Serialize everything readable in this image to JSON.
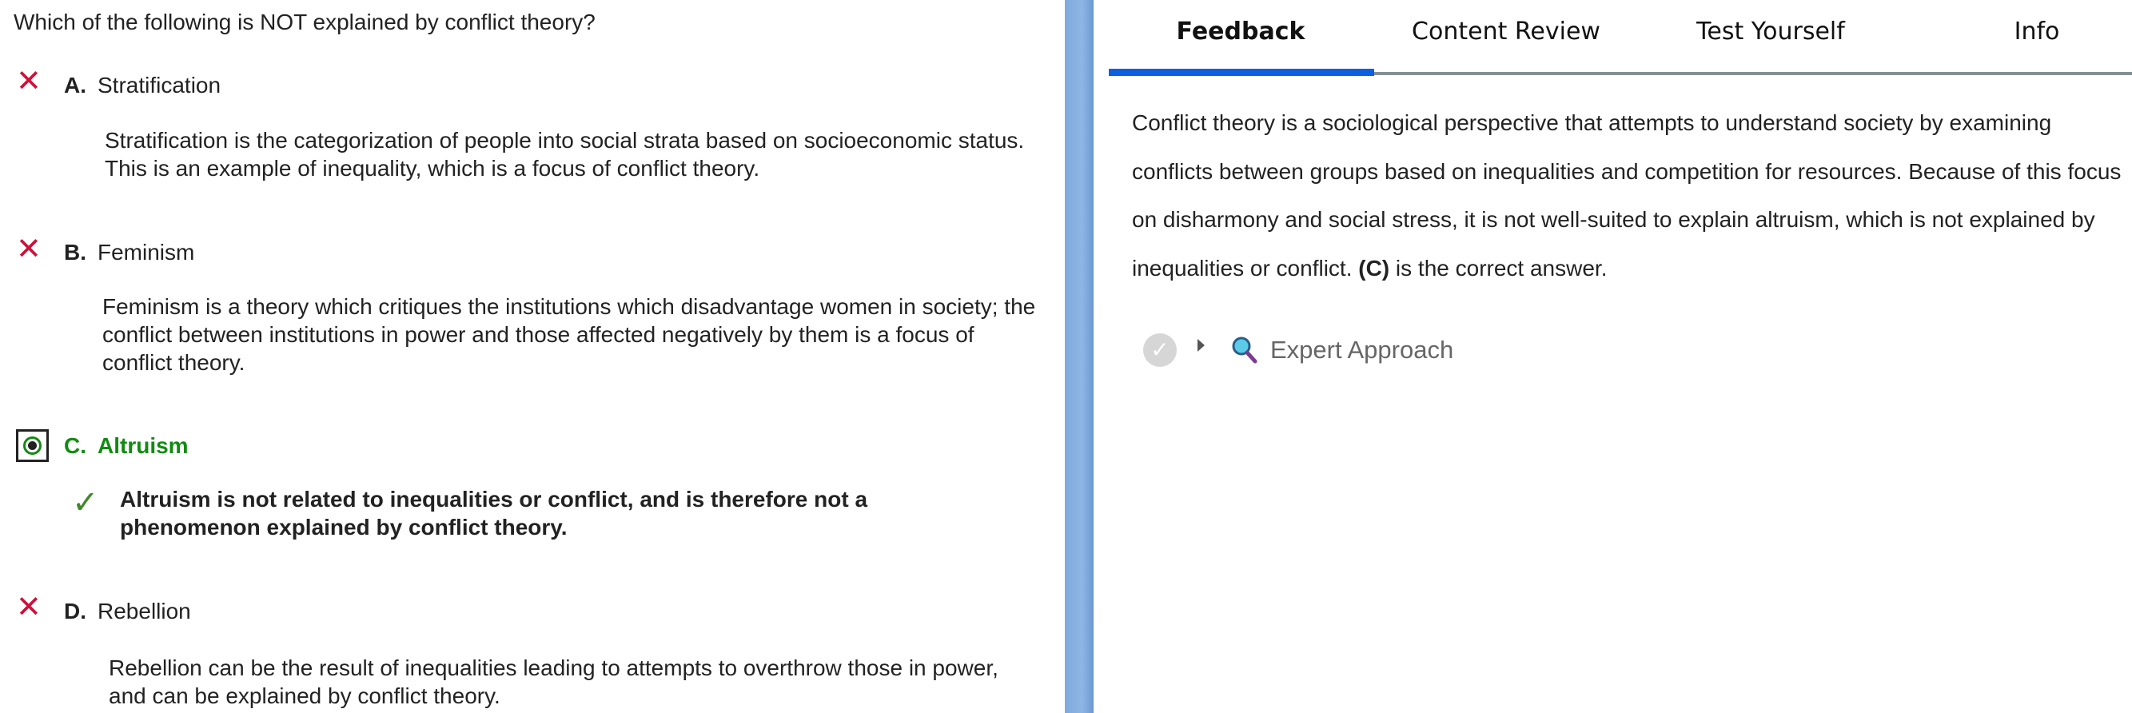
{
  "question": "Which of the following is NOT explained by conflict theory?",
  "options": [
    {
      "letter": "A.",
      "label": "Stratification",
      "status": "incorrect",
      "explanation": "Stratification is the categorization of people into social strata based on socioeconomic status. This is an example of inequality, which is a focus of conflict theory."
    },
    {
      "letter": "B.",
      "label": "Feminism",
      "status": "incorrect",
      "explanation": "Feminism is a theory which critiques the institutions which disadvantage women in society; the conflict between institutions in power and those affected negatively by them is a focus of conflict theory."
    },
    {
      "letter": "C.",
      "label": "Altruism",
      "status": "selected-correct",
      "explanation": "Altruism is not related to inequalities or conflict, and is therefore not a phenomenon explained by conflict theory."
    },
    {
      "letter": "D.",
      "label": "Rebellion",
      "status": "incorrect",
      "explanation": "Rebellion can be the result of inequalities leading to attempts to overthrow those in power, and can be explained by conflict theory."
    }
  ],
  "icons": {
    "incorrect": "✕",
    "correct": "✓"
  },
  "colors": {
    "incorrect": "#d0103a",
    "correct": "#128a12",
    "tab_active": "#0b5fe0",
    "divider": "#8fb6e4"
  },
  "tabs": [
    {
      "label": "Feedback",
      "active": true
    },
    {
      "label": "Content Review"
    },
    {
      "label": "Test Yourself"
    },
    {
      "label": "Info"
    }
  ],
  "feedback": {
    "text_before": "Conflict theory is a sociological perspective that attempts to understand society by examining conflicts between groups based on inequalities and competition for resources. Because of this focus on disharmony and social stress, it is not well-suited to explain altruism, which is not explained by inequalities or conflict. ",
    "answer": "(C)",
    "text_after": " is the correct answer."
  },
  "expert_approach": {
    "label": "Expert Approach"
  }
}
